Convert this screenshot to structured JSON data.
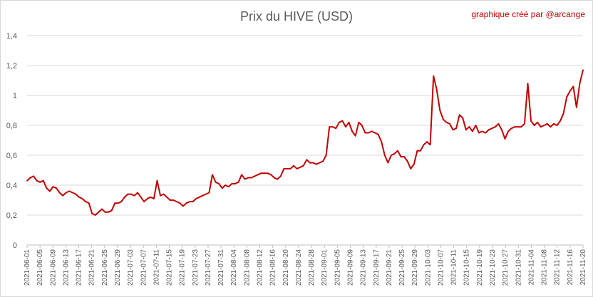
{
  "chart_data": {
    "type": "line",
    "title": "Prix du HIVE (USD)",
    "credit": "graphique créé par @arcange",
    "xlabel": "",
    "ylabel": "",
    "ylim": [
      0,
      1.4
    ],
    "y_ticks": [
      "0",
      "0,2",
      "0,4",
      "0,6",
      "0,8",
      "1",
      "1,2",
      "1,4"
    ],
    "x_tick_labels": [
      "2021-06-01",
      "2021-06-05",
      "2021-06-09",
      "2021-06-13",
      "2021-06-17",
      "2021-06-21",
      "2021-06-25",
      "2021-06-29",
      "2021-07-03",
      "2021-07-07",
      "2021-07-11",
      "2021-07-15",
      "2021-07-19",
      "2021-07-23",
      "2021-07-27",
      "2021-07-31",
      "2021-08-04",
      "2021-08-08",
      "2021-08-12",
      "2021-08-16",
      "2021-08-20",
      "2021-08-24",
      "2021-08-28",
      "2021-09-01",
      "2021-09-05",
      "2021-09-09",
      "2021-09-13",
      "2021-09-17",
      "2021-09-21",
      "2021-09-25",
      "2021-09-29",
      "2021-10-03",
      "2021-10-07",
      "2021-10-11",
      "2021-10-15",
      "2021-10-19",
      "2021-10-23",
      "2021-10-27",
      "2021-10-31",
      "2021-11-04",
      "2021-11-08",
      "2021-11-12",
      "2021-11-16",
      "2021-11-20"
    ],
    "grid": "horizontal",
    "legend": "none",
    "series": [
      {
        "color": "#c00000",
        "x_start": "2021-06-01",
        "x_end": "2021-11-20",
        "values": [
          0.43,
          0.45,
          0.46,
          0.43,
          0.42,
          0.43,
          0.38,
          0.36,
          0.39,
          0.38,
          0.35,
          0.33,
          0.35,
          0.36,
          0.35,
          0.34,
          0.32,
          0.31,
          0.29,
          0.28,
          0.21,
          0.2,
          0.22,
          0.24,
          0.22,
          0.22,
          0.23,
          0.28,
          0.28,
          0.29,
          0.32,
          0.34,
          0.34,
          0.33,
          0.35,
          0.32,
          0.29,
          0.31,
          0.32,
          0.31,
          0.43,
          0.33,
          0.34,
          0.32,
          0.3,
          0.3,
          0.29,
          0.28,
          0.26,
          0.28,
          0.29,
          0.29,
          0.31,
          0.32,
          0.33,
          0.34,
          0.35,
          0.47,
          0.42,
          0.41,
          0.38,
          0.4,
          0.39,
          0.41,
          0.41,
          0.42,
          0.47,
          0.44,
          0.45,
          0.45,
          0.46,
          0.47,
          0.48,
          0.48,
          0.48,
          0.47,
          0.45,
          0.44,
          0.46,
          0.51,
          0.51,
          0.51,
          0.53,
          0.51,
          0.52,
          0.53,
          0.57,
          0.55,
          0.55,
          0.54,
          0.55,
          0.56,
          0.6,
          0.79,
          0.79,
          0.78,
          0.82,
          0.83,
          0.79,
          0.82,
          0.76,
          0.73,
          0.82,
          0.8,
          0.75,
          0.75,
          0.76,
          0.75,
          0.74,
          0.69,
          0.6,
          0.55,
          0.6,
          0.61,
          0.63,
          0.59,
          0.59,
          0.56,
          0.51,
          0.54,
          0.63,
          0.63,
          0.67,
          0.69,
          0.67,
          1.13,
          1.04,
          0.9,
          0.84,
          0.82,
          0.81,
          0.77,
          0.78,
          0.87,
          0.85,
          0.77,
          0.79,
          0.76,
          0.8,
          0.75,
          0.76,
          0.75,
          0.77,
          0.78,
          0.79,
          0.81,
          0.77,
          0.71,
          0.76,
          0.78,
          0.79,
          0.79,
          0.79,
          0.81,
          1.08,
          0.83,
          0.8,
          0.82,
          0.79,
          0.8,
          0.81,
          0.79,
          0.81,
          0.8,
          0.83,
          0.88,
          0.99,
          1.03,
          1.06,
          0.92,
          1.08,
          1.17
        ]
      }
    ]
  }
}
